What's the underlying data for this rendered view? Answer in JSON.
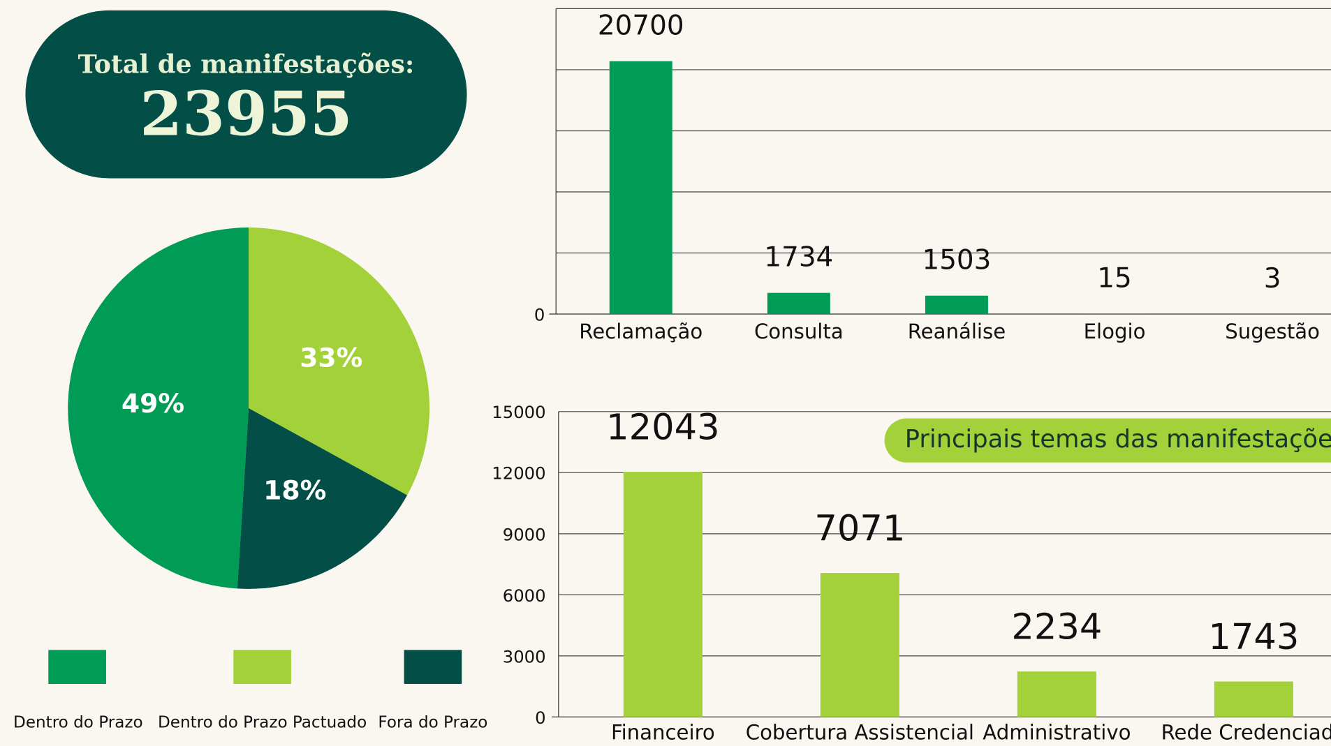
{
  "header": {
    "title": "Total de manifestações:",
    "total": 23955
  },
  "chart_data": [
    {
      "type": "pie",
      "categories": [
        "Dentro do Prazo",
        "Dentro do Prazo Pactuado",
        "Fora do Prazo"
      ],
      "values": [
        49,
        33,
        18
      ],
      "value_labels": [
        "49%",
        "33%",
        "18%"
      ],
      "colors": [
        "#009b55",
        "#a3d139",
        "#034f48"
      ],
      "legend": "bottom"
    },
    {
      "type": "bar",
      "categories": [
        "Reclamação",
        "Consulta",
        "Reanálise",
        "Elogio",
        "Sugestão"
      ],
      "values": [
        20700,
        1734,
        1503,
        15,
        3
      ],
      "color": "#009b55",
      "ylim": [
        0,
        25000
      ],
      "yticks": [
        0
      ],
      "grid_lines": [
        5000,
        10000,
        15000,
        20000,
        25000
      ]
    },
    {
      "type": "bar",
      "title": "Principais temas das manifestações",
      "categories": [
        "Financeiro",
        "Cobertura Assistencial",
        "Administrativo",
        "Rede Credenciada"
      ],
      "values": [
        12043,
        7071,
        2234,
        1743
      ],
      "color": "#a3d139",
      "ylim": [
        0,
        15000
      ],
      "yticks": [
        0,
        3000,
        6000,
        9000,
        12000,
        15000
      ]
    }
  ]
}
